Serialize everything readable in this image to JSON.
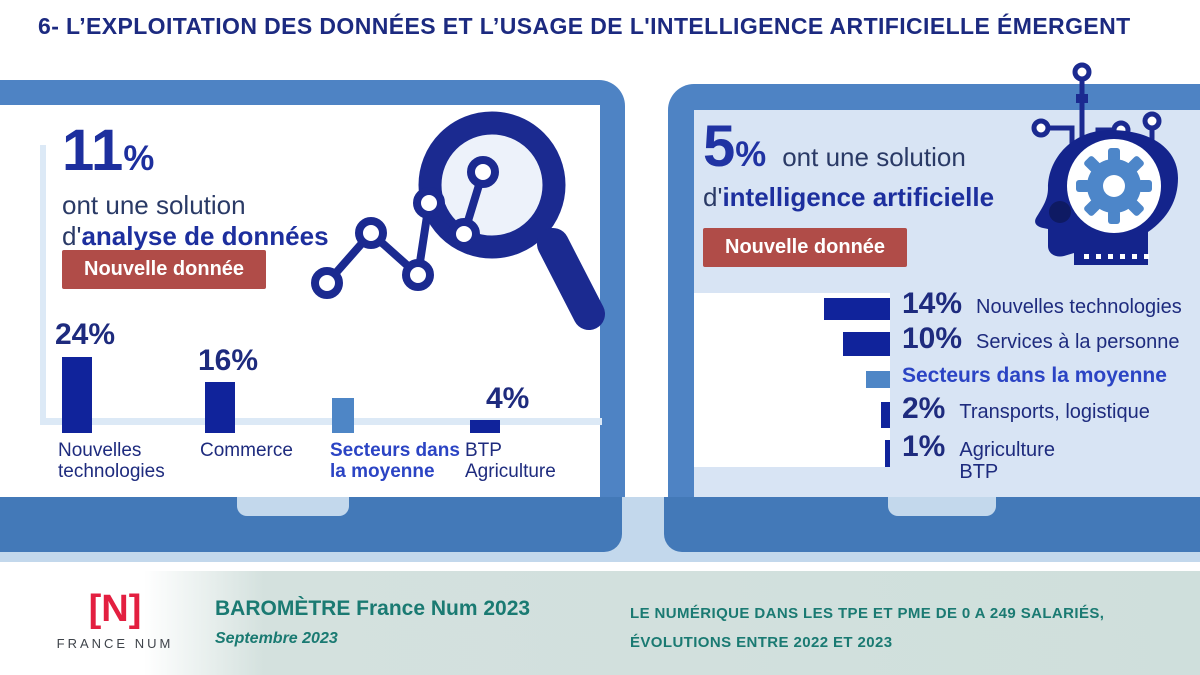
{
  "title": "6- L’EXPLOITATION DES DONNÉES ET L’USAGE DE L'INTELLIGENCE ARTIFICIELLE ÉMERGENT",
  "left_panel": {
    "stat_value": "11",
    "stat_unit": "%",
    "line1": "ont une solution",
    "line2_prefix": "d'",
    "line2_bold": "analyse de données",
    "badge": "Nouvelle donnée"
  },
  "right_panel": {
    "stat_value": "5",
    "stat_unit": "%",
    "line1": "ont une solution",
    "line2_prefix": "d'",
    "line2_bold": "intelligence artificielle",
    "badge": "Nouvelle donnée"
  },
  "chart_data": [
    {
      "type": "bar",
      "orientation": "vertical",
      "title": "11% ont une solution d'analyse de données",
      "categories": [
        "Nouvelles technologies",
        "Commerce",
        "Secteurs dans la moyenne",
        "BTP Agriculture"
      ],
      "values": [
        24,
        16,
        11,
        4
      ],
      "value_labels": [
        "24%",
        "16%",
        "",
        "4%"
      ],
      "average_index": 2,
      "ylim": [
        0,
        24
      ],
      "grid": false,
      "legend": false
    },
    {
      "type": "bar",
      "orientation": "horizontal",
      "title": "5% ont une solution d'intelligence artificielle",
      "categories": [
        "Nouvelles technologies",
        "Services à la personne",
        "Secteurs dans la moyenne",
        "Transports, logistique",
        "Agriculture BTP"
      ],
      "values": [
        14,
        10,
        5,
        2,
        1
      ],
      "value_labels": [
        "14%",
        "10%",
        "",
        "2%",
        "1%"
      ],
      "average_index": 2,
      "xlim": [
        0,
        14
      ],
      "grid": false,
      "legend": false
    }
  ],
  "footer": {
    "logo_mark": "[N]",
    "logo_text": "FRANCE NUM",
    "report_title": "BAROMÈTRE France Num 2023",
    "report_date": "Septembre 2023",
    "subtitle_line1": "LE NUMÉRIQUE DANS LES TPE ET PME DE 0 A 249 SALARIÉS,",
    "subtitle_line2": "ÉVOLUTIONS ENTRE 2022 ET 2023"
  },
  "colors": {
    "title_navy": "#1c2a80",
    "text_navy": "#2a3a66",
    "bold_blue": "#1d2f9e",
    "bar_navy": "#10239b",
    "bar_light_blue": "#4e86c6",
    "average_label_blue": "#2b44c4",
    "bezel_blue": "#4e83c4",
    "base_blue": "#4379b8",
    "screen_light_blue": "#d8e4f4",
    "badge_red": "#b04c48",
    "teal": "#1a7a72",
    "footer_band": "#cfdfdc",
    "logo_red": "#e31f40",
    "icon_navy": "#1b2a90"
  }
}
